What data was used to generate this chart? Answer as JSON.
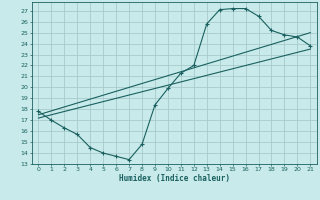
{
  "xlabel": "Humidex (Indice chaleur)",
  "bg_color": "#c8eaea",
  "grid_color": "#a8caca",
  "line_color": "#1a6060",
  "xlim": [
    -0.5,
    21.5
  ],
  "ylim": [
    13,
    27.8
  ],
  "xticks": [
    0,
    1,
    2,
    3,
    4,
    5,
    6,
    7,
    8,
    9,
    10,
    11,
    12,
    13,
    14,
    15,
    16,
    17,
    18,
    19,
    20,
    21
  ],
  "yticks": [
    13,
    14,
    15,
    16,
    17,
    18,
    19,
    20,
    21,
    22,
    23,
    24,
    25,
    26,
    27
  ],
  "curve1_x": [
    0,
    1,
    2,
    3,
    4,
    5,
    6,
    7,
    8,
    9,
    10,
    11,
    12,
    13,
    14,
    15,
    16,
    17,
    18,
    19,
    20,
    21
  ],
  "curve1_y": [
    17.8,
    17.0,
    16.3,
    15.7,
    14.5,
    14.0,
    13.7,
    13.4,
    14.8,
    18.4,
    19.9,
    21.3,
    22.0,
    25.8,
    27.1,
    27.2,
    27.2,
    26.5,
    25.2,
    24.8,
    24.6,
    23.8
  ],
  "curve2_x": [
    0,
    21
  ],
  "curve2_y": [
    17.5,
    25.0
  ],
  "curve3_x": [
    0,
    21
  ],
  "curve3_y": [
    17.2,
    23.5
  ]
}
